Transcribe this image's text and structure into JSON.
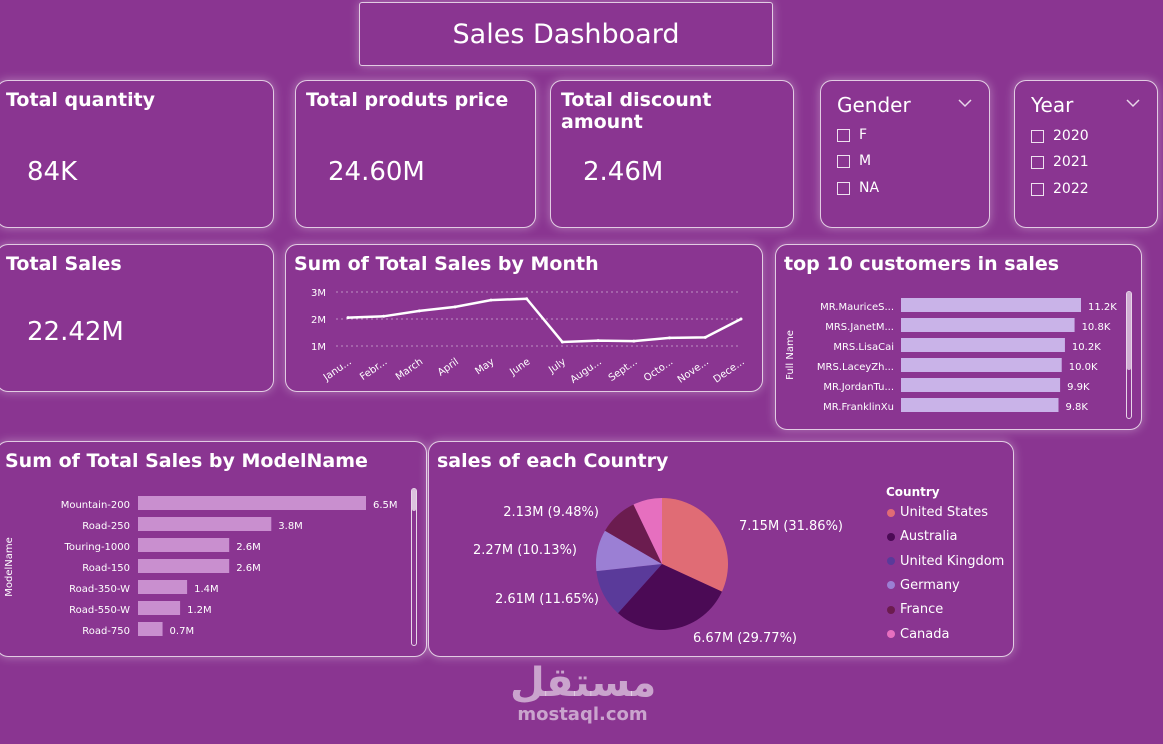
{
  "dashboard": {
    "title": "Sales Dashboard"
  },
  "kpis": {
    "total_quantity": {
      "label": "Total quantity",
      "value": "84K"
    },
    "total_products_price": {
      "label": "Total produts price",
      "value": "24.60M"
    },
    "total_discount": {
      "label": "Total discount amount",
      "value": "2.46M"
    },
    "total_sales": {
      "label": "Total Sales",
      "value": "22.42M"
    }
  },
  "slicers": {
    "gender": {
      "title": "Gender",
      "items": [
        "F",
        "M",
        "NA"
      ]
    },
    "year": {
      "title": "Year",
      "items": [
        "2020",
        "2021",
        "2022"
      ]
    }
  },
  "icons": {
    "chevron": "chevron-down-icon",
    "checkbox": "checkbox-icon"
  },
  "chart_data": [
    {
      "type": "line",
      "title": "Sum of Total Sales by Month",
      "categories": [
        "Janu...",
        "Febr...",
        "March",
        "April",
        "May",
        "June",
        "July",
        "Augu...",
        "Sept...",
        "Octo...",
        "Nove...",
        "Dece..."
      ],
      "values": [
        2.05,
        2.1,
        2.3,
        2.45,
        2.7,
        2.75,
        1.15,
        1.2,
        1.18,
        1.3,
        1.32,
        2.0
      ],
      "yticks": [
        "3M",
        "2M",
        "1M"
      ],
      "ylim": [
        1,
        3
      ],
      "color": "#ffffff"
    },
    {
      "type": "bar",
      "title": "top 10 customers in sales",
      "ylabel": "Full Name",
      "categories": [
        "MR.MauriceS...",
        "MRS.JanetM...",
        "MRS.LisaCai",
        "MRS.LaceyZh...",
        "MR.JordanTu...",
        "MR.FranklinXu"
      ],
      "values": [
        11.2,
        10.8,
        10.2,
        10.0,
        9.9,
        9.8
      ],
      "labels": [
        "11.2K",
        "10.8K",
        "10.2K",
        "10.0K",
        "9.9K",
        "9.8K"
      ],
      "color": "#c9b3e8"
    },
    {
      "type": "bar",
      "title": "Sum of Total Sales by ModelName",
      "ylabel": "ModelName",
      "categories": [
        "Mountain-200",
        "Road-250",
        "Touring-1000",
        "Road-150",
        "Road-350-W",
        "Road-550-W",
        "Road-750"
      ],
      "values": [
        6.5,
        3.8,
        2.6,
        2.6,
        1.4,
        1.2,
        0.7
      ],
      "labels": [
        "6.5M",
        "3.8M",
        "2.6M",
        "2.6M",
        "1.4M",
        "1.2M",
        "0.7M"
      ],
      "color": "#c98fcf"
    },
    {
      "type": "pie",
      "title": "sales of each Country",
      "legend_title": "Country",
      "categories": [
        "United States",
        "Australia",
        "United Kingdom",
        "Germany",
        "France",
        "Canada"
      ],
      "values": [
        31.86,
        29.77,
        11.65,
        10.13,
        9.48,
        7.11
      ],
      "labels": [
        "7.15M (31.86%)",
        "6.67M (29.77%)",
        "2.61M (11.65%)",
        "2.27M (10.13%)",
        "2.13M (9.48%)",
        ""
      ],
      "colors": [
        "#e06c75",
        "#4b0a55",
        "#5a3a9a",
        "#9b7fd4",
        "#6b1c4f",
        "#e66fbf"
      ]
    }
  ],
  "watermark": {
    "arabic": "مستقل",
    "latin": "mostaql.com"
  }
}
